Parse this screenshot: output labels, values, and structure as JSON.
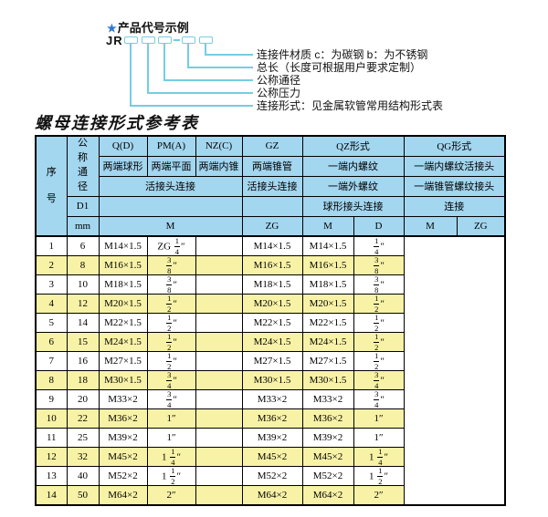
{
  "colors": {
    "header_bg": "#a3d6ef",
    "row_alt_bg": "#f8f2a6",
    "line_cyan": "#74cde2",
    "star_blue": "#2b78cf"
  },
  "diagram": {
    "star": "★",
    "title": "产品代号示例",
    "prefix": "JR",
    "labels": [
      "连接件材质  c：为碳钢  b：为不锈钢",
      "总长（长度可根据用户要求定制）",
      "公称通径",
      "公称压力",
      "连接形式：见金属软管常用结构形式表"
    ]
  },
  "table": {
    "title": "螺母连接形式参考表",
    "header": {
      "col_seq": "序号",
      "col_dn": "公称通径",
      "d1": "D1",
      "mm": "mm",
      "q": "Q(D)",
      "pm": "PM(A)",
      "nz": "NZ(C)",
      "gz": "GZ",
      "qz": "QZ形式",
      "qg": "QG形式",
      "q_desc": "两端球形",
      "pm_desc": "两端平面",
      "nz_desc": "两端内锥",
      "gz_desc": "两端锥管",
      "qz_desc": "一端内螺纹",
      "qg_desc": "一端内螺纹活接头",
      "live_joint": "活接头连接",
      "gz_live_joint": "活接头连接",
      "qz_desc2": "一端外螺纹",
      "qg_desc2": "一端锥管螺纹接头",
      "qz_conn": "球形接头连接",
      "qg_conn": "连接",
      "m": "M",
      "zg": "ZG",
      "qz_m": "M",
      "qz_d": "D",
      "qg_m": "M",
      "qg_zg": "ZG"
    },
    "rows": [
      {
        "no": "1",
        "mm": "6",
        "m": "M14×1.5",
        "zg": "ZG 1/4″",
        "qz_m": "",
        "qz_d": "M14×1.5",
        "qg_m": "M14×1.5",
        "qg_zg": "1/4″"
      },
      {
        "no": "2",
        "mm": "8",
        "m": "M16×1.5",
        "zg": "3/8″",
        "qz_m": "",
        "qz_d": "M16×1.5",
        "qg_m": "M16×1.5",
        "qg_zg": "3/8″"
      },
      {
        "no": "3",
        "mm": "10",
        "m": "M18×1.5",
        "zg": "3/8″",
        "qz_m": "",
        "qz_d": "M18×1.5",
        "qg_m": "M18×1.5",
        "qg_zg": "3/8″"
      },
      {
        "no": "4",
        "mm": "12",
        "m": "M20×1.5",
        "zg": "1/2″",
        "qz_m": "",
        "qz_d": "M20×1.5",
        "qg_m": "M20×1.5",
        "qg_zg": "1/2″"
      },
      {
        "no": "5",
        "mm": "14",
        "m": "M22×1.5",
        "zg": "1/2″",
        "qz_m": "",
        "qz_d": "M22×1.5",
        "qg_m": "M22×1.5",
        "qg_zg": "1/2″"
      },
      {
        "no": "6",
        "mm": "15",
        "m": "M24×1.5",
        "zg": "1/2″",
        "qz_m": "",
        "qz_d": "M24×1.5",
        "qg_m": "M24×1.5",
        "qg_zg": "1/2″"
      },
      {
        "no": "7",
        "mm": "16",
        "m": "M27×1.5",
        "zg": "1/2″",
        "qz_m": "",
        "qz_d": "M27×1.5",
        "qg_m": "M27×1.5",
        "qg_zg": "1/2″"
      },
      {
        "no": "8",
        "mm": "18",
        "m": "M30×1.5",
        "zg": "3/4″",
        "qz_m": "",
        "qz_d": "M30×1.5",
        "qg_m": "M30×1.5",
        "qg_zg": "3/4″"
      },
      {
        "no": "9",
        "mm": "20",
        "m": "M33×2",
        "zg": "3/4″",
        "qz_m": "",
        "qz_d": "M33×2",
        "qg_m": "M33×2",
        "qg_zg": "3/4″"
      },
      {
        "no": "10",
        "mm": "22",
        "m": "M36×2",
        "zg": "1″",
        "qz_m": "",
        "qz_d": "M36×2",
        "qg_m": "M36×2",
        "qg_zg": "1″"
      },
      {
        "no": "11",
        "mm": "25",
        "m": "M39×2",
        "zg": "1″",
        "qz_m": "",
        "qz_d": "M39×2",
        "qg_m": "M39×2",
        "qg_zg": "1″"
      },
      {
        "no": "12",
        "mm": "32",
        "m": "M45×2",
        "zg": "1 1/4″",
        "qz_m": "",
        "qz_d": "M45×2",
        "qg_m": "M45×2",
        "qg_zg": "1 1/4″"
      },
      {
        "no": "13",
        "mm": "40",
        "m": "M52×2",
        "zg": "1 1/2″",
        "qz_m": "",
        "qz_d": "M52×2",
        "qg_m": "M52×2",
        "qg_zg": "1 1/2″"
      },
      {
        "no": "14",
        "mm": "50",
        "m": "M64×2",
        "zg": "2″",
        "qz_m": "",
        "qz_d": "M64×2",
        "qg_m": "M64×2",
        "qg_zg": "2″"
      }
    ]
  }
}
